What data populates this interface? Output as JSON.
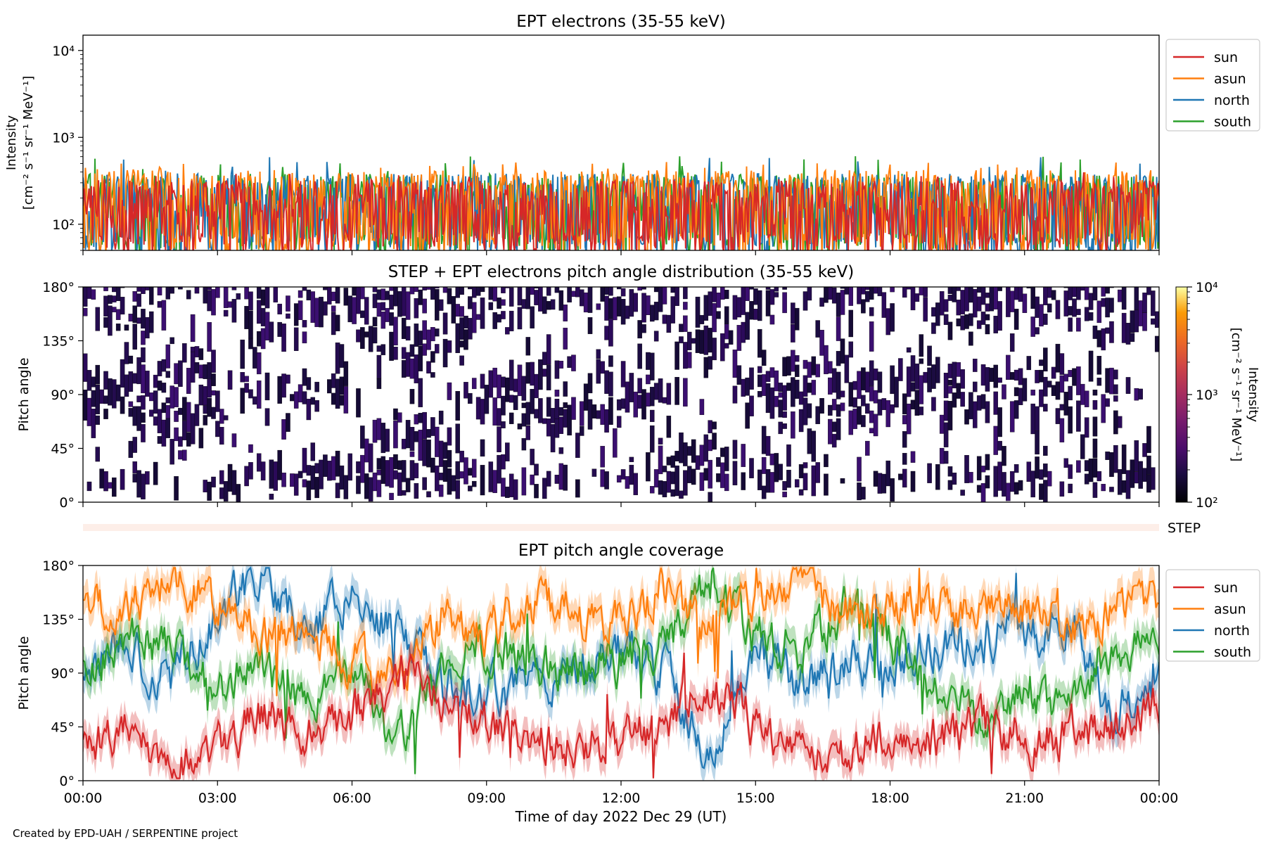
{
  "colors": {
    "sun": "#d62728",
    "asun": "#ff7f0e",
    "north": "#1f77b4",
    "south": "#2ca02c",
    "step_band": "#fdeee8"
  },
  "footer": "Created by EPD-UAH / SERPENTINE project",
  "chart_data": [
    {
      "type": "line",
      "title": "EPT electrons (35-55 keV)",
      "ylabel": [
        "Intensity",
        "[cm⁻² s⁻¹ sr⁻¹ MeV⁻¹]"
      ],
      "yscale": "log",
      "ylim": [
        50,
        15000
      ],
      "yticks": [
        {
          "value": 100,
          "label": "10²"
        },
        {
          "value": 1000,
          "label": "10³"
        },
        {
          "value": 10000,
          "label": "10⁴"
        }
      ],
      "xlim_hours": [
        0,
        24
      ],
      "legend": {
        "location": "upper right outside",
        "entries": [
          "sun",
          "asun",
          "north",
          "south"
        ]
      },
      "series": [
        {
          "name": "sun",
          "typical_range": [
            60,
            320
          ],
          "peak_approx": 400
        },
        {
          "name": "asun",
          "typical_range": [
            60,
            420
          ],
          "peak_approx": 520
        },
        {
          "name": "north",
          "typical_range": [
            60,
            380
          ],
          "peak_approx": 600
        },
        {
          "name": "south",
          "typical_range": [
            60,
            380
          ],
          "peak_approx": 620
        }
      ]
    },
    {
      "type": "heatmap",
      "title": "STEP + EPT electrons pitch angle distribution (35-55 keV)",
      "ylabel": "Pitch angle",
      "ylim": [
        0,
        180
      ],
      "yticks": [
        "0°",
        "45°",
        "90°",
        "135°",
        "180°"
      ],
      "xlim_hours": [
        0,
        24
      ],
      "colorbar": {
        "label": [
          "Intensity",
          "[cm⁻² s⁻¹ sr⁻¹ MeV⁻¹]"
        ],
        "scale": "log",
        "range": [
          100,
          10000
        ],
        "ticks": [
          "10²",
          "10³",
          "10⁴"
        ],
        "colormap": "inferno"
      },
      "values_note": "mostly low intensity (~10²) with white gaps"
    },
    {
      "type": "band",
      "label": "STEP"
    },
    {
      "type": "line",
      "title": "EPT pitch angle coverage",
      "ylabel": "Pitch angle",
      "ylim": [
        0,
        180
      ],
      "yticks": [
        "0°",
        "45°",
        "90°",
        "135°",
        "180°"
      ],
      "xlim_hours": [
        0,
        24
      ],
      "xlabel": "Time of day 2022 Dec 29 (UT)",
      "xticks": [
        "00:00",
        "03:00",
        "06:00",
        "09:00",
        "12:00",
        "15:00",
        "18:00",
        "21:00",
        "00:00"
      ],
      "legend": {
        "location": "upper right outside",
        "entries": [
          "sun",
          "asun",
          "north",
          "south"
        ]
      },
      "series": [
        {
          "name": "sun",
          "x_hours": [
            0,
            1,
            2,
            3,
            4,
            5,
            6,
            7,
            8,
            9,
            10,
            11,
            12,
            13,
            14,
            15,
            16,
            17,
            18,
            19,
            20,
            21,
            22,
            23,
            24
          ],
          "values": [
            35,
            45,
            15,
            30,
            55,
            40,
            55,
            90,
            70,
            45,
            35,
            30,
            35,
            45,
            80,
            45,
            30,
            25,
            40,
            35,
            45,
            35,
            40,
            50,
            60
          ]
        },
        {
          "name": "asun",
          "x_hours": [
            0,
            1,
            2,
            3,
            4,
            5,
            6,
            7,
            8,
            9,
            10,
            11,
            12,
            13,
            14,
            15,
            16,
            17,
            18,
            19,
            20,
            21,
            22,
            23,
            24
          ],
          "values": [
            150,
            140,
            170,
            150,
            120,
            125,
            100,
            85,
            140,
            125,
            150,
            140,
            130,
            165,
            120,
            155,
            165,
            140,
            150,
            145,
            140,
            145,
            125,
            145,
            150
          ]
        },
        {
          "name": "north",
          "x_hours": [
            0,
            1,
            2,
            3,
            4,
            5,
            6,
            7,
            8,
            9,
            10,
            11,
            12,
            13,
            14,
            15,
            16,
            17,
            18,
            19,
            20,
            21,
            22,
            23,
            24
          ],
          "values": [
            95,
            110,
            85,
            140,
            170,
            125,
            160,
            120,
            80,
            75,
            80,
            95,
            110,
            90,
            15,
            110,
            80,
            95,
            100,
            110,
            120,
            125,
            130,
            60,
            90
          ]
        },
        {
          "name": "south",
          "x_hours": [
            0,
            1,
            2,
            3,
            4,
            5,
            6,
            7,
            8,
            9,
            10,
            11,
            12,
            13,
            14,
            15,
            16,
            17,
            18,
            19,
            20,
            21,
            22,
            23,
            24
          ],
          "values": [
            90,
            120,
            110,
            75,
            100,
            60,
            95,
            25,
            95,
            115,
            100,
            95,
            100,
            110,
            170,
            120,
            110,
            145,
            120,
            75,
            60,
            70,
            65,
            110,
            120
          ]
        }
      ]
    }
  ]
}
